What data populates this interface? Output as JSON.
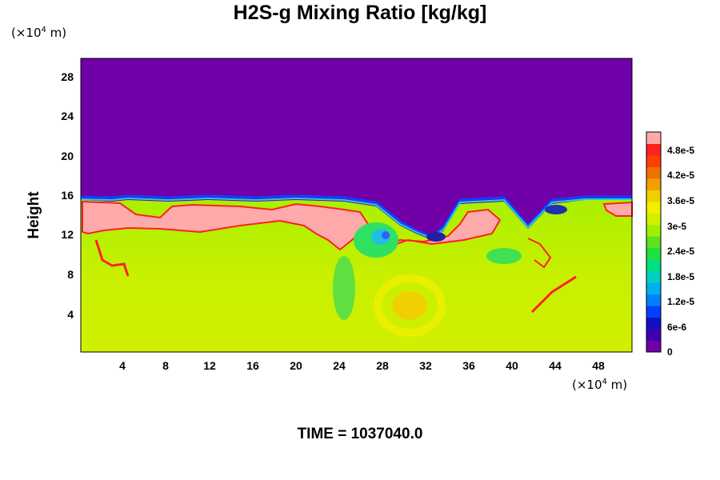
{
  "chart_data": {
    "type": "heatmap",
    "title": "H2S-g Mixing Ratio [kg/kg]",
    "xlabel_unit": "(×10⁴ m)",
    "ylabel_unit": "(×10⁴ m)",
    "ylabel": "Height",
    "footer": "TIME = 1037040.0",
    "xlim": [
      0,
      52
    ],
    "ylim": [
      0,
      29.5
    ],
    "x_ticks": [
      "4",
      "8",
      "12",
      "16",
      "20",
      "24",
      "28",
      "32",
      "36",
      "40",
      "44",
      "48"
    ],
    "y_ticks": [
      "4",
      "8",
      "12",
      "16",
      "20",
      "24",
      "28"
    ],
    "colorbar": {
      "labels": [
        "0",
        "6e-6",
        "1.2e-5",
        "1.8e-5",
        "2.4e-5",
        "3e-5",
        "3.6e-5",
        "4.2e-5",
        "4.8e-5"
      ],
      "values": [
        0,
        6e-06,
        1.2e-05,
        1.8e-05,
        2.4e-05,
        3e-05,
        3.6e-05,
        4.2e-05,
        4.8e-05
      ],
      "vmax": 5.1e-05
    },
    "fields": {
      "upper_layer_value": 0,
      "interface_height": 15.5,
      "lower_background_value": 3.3e-05,
      "max_region_value": 5.1e-05
    }
  },
  "colors": {
    "upper": "#7000a8",
    "background": "#c8f000",
    "max": "#ffaaaa",
    "red": "#ff2020"
  }
}
